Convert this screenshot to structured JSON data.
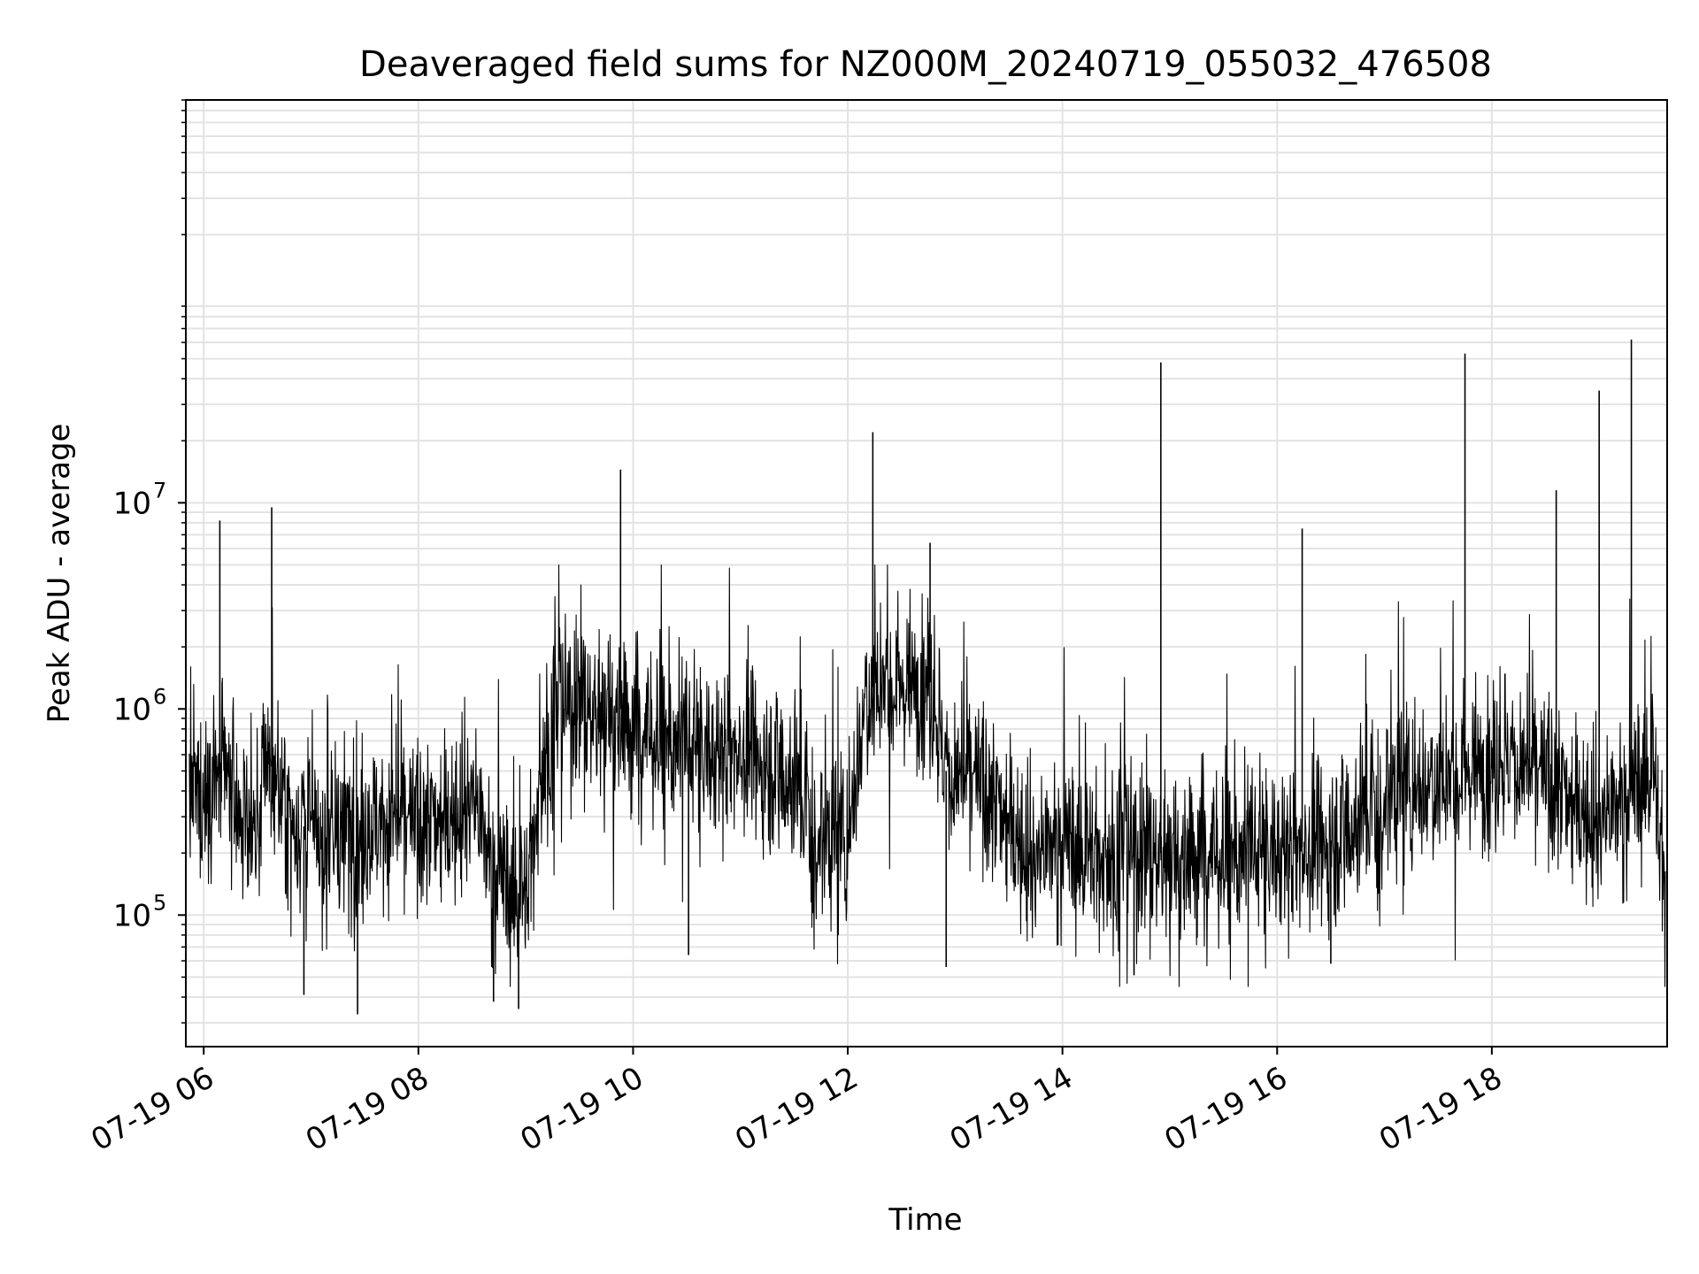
{
  "chart_data": {
    "type": "line",
    "title": "Deaveraged field sums for NZ000M_20240719_055032_476508",
    "xlabel": "Time",
    "ylabel": "Peak ADU - average",
    "y_scale": "log",
    "ylim": [
      23000,
      900000000
    ],
    "xlim": [
      "2024-07-19 05:50",
      "2024-07-19 19:38"
    ],
    "x_ticks": [
      {
        "t": "2024-07-19 06:00",
        "label": "07-19 06"
      },
      {
        "t": "2024-07-19 08:00",
        "label": "07-19 08"
      },
      {
        "t": "2024-07-19 10:00",
        "label": "07-19 10"
      },
      {
        "t": "2024-07-19 12:00",
        "label": "07-19 12"
      },
      {
        "t": "2024-07-19 14:00",
        "label": "07-19 14"
      },
      {
        "t": "2024-07-19 16:00",
        "label": "07-19 16"
      },
      {
        "t": "2024-07-19 18:00",
        "label": "07-19 18"
      }
    ],
    "y_ticks": [
      {
        "value": 100000,
        "base": "10",
        "exp": "5"
      },
      {
        "value": 1000000,
        "base": "10",
        "exp": "6"
      },
      {
        "value": 10000000,
        "base": "10",
        "exp": "7"
      }
    ],
    "grid": true,
    "line_color": "#000000",
    "grid_color": "#e3e3e3",
    "series": [
      {
        "x": [
          "2024-07-19 05:52",
          "2024-07-19 06:00",
          "2024-07-19 06:10",
          "2024-07-19 06:20",
          "2024-07-19 06:30",
          "2024-07-19 06:36",
          "2024-07-19 06:45",
          "2024-07-19 07:00",
          "2024-07-19 07:15",
          "2024-07-19 07:30",
          "2024-07-19 07:45",
          "2024-07-19 08:00",
          "2024-07-19 08:15",
          "2024-07-19 08:30",
          "2024-07-19 08:40",
          "2024-07-19 08:50",
          "2024-07-19 09:00",
          "2024-07-19 09:10",
          "2024-07-19 09:20",
          "2024-07-19 09:30",
          "2024-07-19 09:40",
          "2024-07-19 09:50",
          "2024-07-19 10:00",
          "2024-07-19 10:15",
          "2024-07-19 10:30",
          "2024-07-19 10:45",
          "2024-07-19 11:00",
          "2024-07-19 11:15",
          "2024-07-19 11:30",
          "2024-07-19 11:45",
          "2024-07-19 12:00",
          "2024-07-19 12:10",
          "2024-07-19 12:20",
          "2024-07-19 12:30",
          "2024-07-19 12:45",
          "2024-07-19 12:55",
          "2024-07-19 13:10",
          "2024-07-19 13:30",
          "2024-07-19 13:45",
          "2024-07-19 14:00",
          "2024-07-19 14:20",
          "2024-07-19 14:40",
          "2024-07-19 14:55",
          "2024-07-19 15:10",
          "2024-07-19 15:30",
          "2024-07-19 15:50",
          "2024-07-19 16:10",
          "2024-07-19 16:30",
          "2024-07-19 16:50",
          "2024-07-19 17:10",
          "2024-07-19 17:30",
          "2024-07-19 17:45",
          "2024-07-19 18:00",
          "2024-07-19 18:15",
          "2024-07-19 18:30",
          "2024-07-19 18:45",
          "2024-07-19 19:00",
          "2024-07-19 19:10",
          "2024-07-19 19:20",
          "2024-07-19 19:30",
          "2024-07-19 19:37"
        ],
        "y": [
          400000,
          350000,
          500000,
          300000,
          280000,
          600000,
          330000,
          250000,
          230000,
          270000,
          300000,
          260000,
          290000,
          420000,
          180000,
          140000,
          120000,
          600000,
          1000000,
          1100000,
          950000,
          1100000,
          800000,
          700000,
          650000,
          600000,
          650000,
          550000,
          450000,
          230000,
          250000,
          1200000,
          1400000,
          1300000,
          1500000,
          500000,
          450000,
          280000,
          200000,
          230000,
          190000,
          210000,
          200000,
          210000,
          190000,
          200000,
          210000,
          230000,
          320000,
          420000,
          480000,
          500000,
          600000,
          550000,
          450000,
          350000,
          320000,
          330000,
          420000,
          550000,
          120000
        ]
      }
    ],
    "spikes": [
      {
        "t": "2024-07-19 06:09",
        "value": 8200000
      },
      {
        "t": "2024-07-19 06:38",
        "value": 9500000
      },
      {
        "t": "2024-07-19 09:53",
        "value": 14500000
      },
      {
        "t": "2024-07-19 12:14",
        "value": 22000000
      },
      {
        "t": "2024-07-19 12:46",
        "value": 6400000
      },
      {
        "t": "2024-07-19 14:55",
        "value": 48000000
      },
      {
        "t": "2024-07-19 16:14",
        "value": 7500000
      },
      {
        "t": "2024-07-19 17:45",
        "value": 53000000
      },
      {
        "t": "2024-07-19 18:36",
        "value": 11500000
      },
      {
        "t": "2024-07-19 19:00",
        "value": 35000000
      },
      {
        "t": "2024-07-19 19:18",
        "value": 62000000
      }
    ],
    "dips": [
      {
        "t": "2024-07-19 06:56",
        "value": 41000
      },
      {
        "t": "2024-07-19 07:26",
        "value": 33000
      },
      {
        "t": "2024-07-19 08:42",
        "value": 38000
      },
      {
        "t": "2024-07-19 08:56",
        "value": 35000
      },
      {
        "t": "2024-07-19 10:31",
        "value": 64000
      },
      {
        "t": "2024-07-19 12:55",
        "value": 56000
      },
      {
        "t": "2024-07-19 14:40",
        "value": 51000
      },
      {
        "t": "2024-07-19 16:30",
        "value": 58000
      }
    ]
  }
}
